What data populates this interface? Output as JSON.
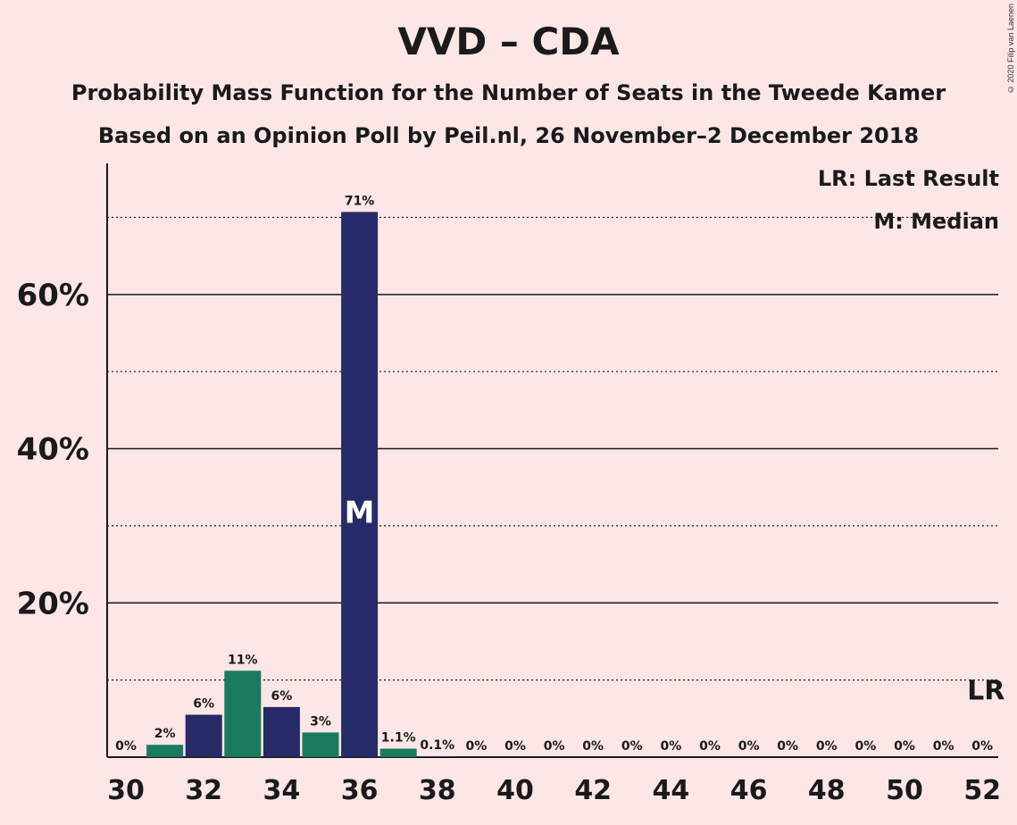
{
  "chart_data": {
    "type": "bar",
    "title": "VVD – CDA",
    "subtitle": "Probability Mass Function for the Number of Seats in the Tweede Kamer",
    "subtitle2": "Based on an Opinion Poll by Peil.nl, 26 November–2 December 2018",
    "copyright": "© 2020 Filip van Laenen",
    "legend": {
      "lr": "LR: Last Result",
      "m": "M: Median",
      "placement": "top-right"
    },
    "ylim": [
      0,
      77
    ],
    "y_ticks": [
      {
        "value": 20,
        "label": "20%"
      },
      {
        "value": 40,
        "label": "40%"
      },
      {
        "value": 60,
        "label": "60%"
      }
    ],
    "y_minor_ticks": [
      10,
      30,
      50,
      70
    ],
    "x_ticks": [
      "30",
      "32",
      "34",
      "36",
      "38",
      "40",
      "42",
      "44",
      "46",
      "48",
      "50",
      "52"
    ],
    "categories": [
      30,
      31,
      32,
      33,
      34,
      35,
      36,
      37,
      38,
      39,
      40,
      41,
      42,
      43,
      44,
      45,
      46,
      47,
      48,
      49,
      50,
      51,
      52
    ],
    "values": [
      0,
      1.6,
      5.5,
      11.2,
      6.5,
      3.2,
      70.7,
      1.1,
      0.1,
      0,
      0,
      0,
      0,
      0,
      0,
      0,
      0,
      0,
      0,
      0,
      0,
      0,
      0
    ],
    "labels": [
      "0%",
      "2%",
      "6%",
      "11%",
      "6%",
      "3%",
      "71%",
      "1.1%",
      "0.1%",
      "0%",
      "0%",
      "0%",
      "0%",
      "0%",
      "0%",
      "0%",
      "0%",
      "0%",
      "0%",
      "0%",
      "0%",
      "0%",
      "0%"
    ],
    "median": {
      "seat": 36,
      "label": "M"
    },
    "last_result": {
      "seat": 52,
      "label": "LR"
    },
    "colors": {
      "dark": "#262a66",
      "green": "#1a7a5e",
      "background": "#fce6e6"
    }
  }
}
